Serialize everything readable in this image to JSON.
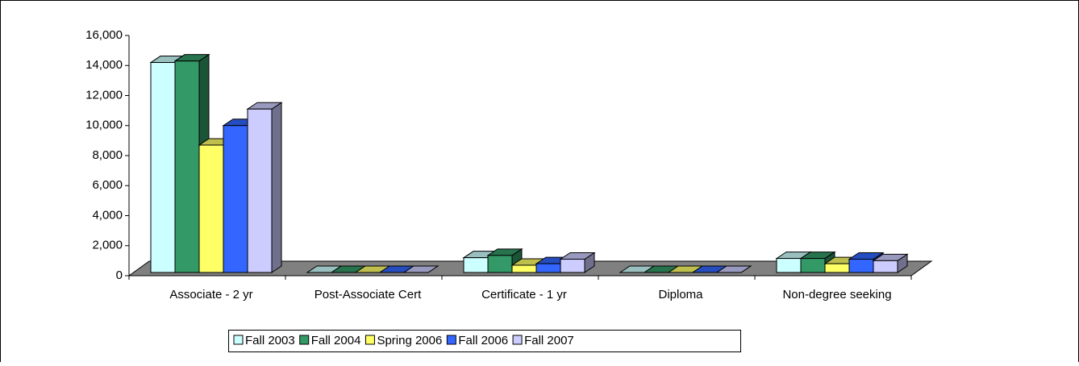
{
  "chart_data": {
    "type": "bar3d",
    "categories": [
      "Associate - 2 yr",
      "Post-Associate Cert",
      "Certificate - 1 yr",
      "Diploma",
      "Non-degree seeking"
    ],
    "series": [
      {
        "name": "Fall 2003",
        "color": "#ccffff",
        "values": [
          14200,
          0,
          1200,
          50,
          1150
        ]
      },
      {
        "name": "Fall 2004",
        "color": "#339966",
        "values": [
          14300,
          0,
          1350,
          30,
          1150
        ]
      },
      {
        "name": "Spring 2006",
        "color": "#ffff66",
        "values": [
          8700,
          0,
          700,
          80,
          800
        ]
      },
      {
        "name": "Fall 2006",
        "color": "#3366ff",
        "values": [
          10000,
          0,
          800,
          100,
          1100
        ]
      },
      {
        "name": "Fall 2007",
        "color": "#ccccff",
        "values": [
          11100,
          0,
          1100,
          80,
          1000
        ]
      }
    ],
    "ylim": [
      0,
      16000
    ],
    "yticks": [
      0,
      {
        "value": 2000,
        "label": "2,000"
      },
      {
        "value": 4000,
        "label": "4,000"
      },
      {
        "value": 6000,
        "label": "6,000"
      },
      {
        "value": 8000,
        "label": "8,000"
      },
      {
        "value": 10000,
        "label": "10,000"
      },
      {
        "value": 12000,
        "label": "12,000"
      },
      {
        "value": 14000,
        "label": "14,000"
      },
      {
        "value": 16000,
        "label": "16,000"
      }
    ],
    "legend": "bottom"
  }
}
